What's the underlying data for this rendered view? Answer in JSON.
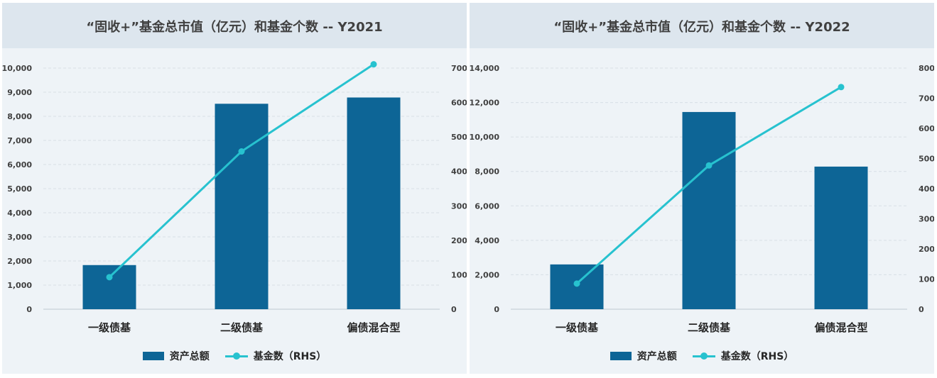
{
  "colors": {
    "bar": "#0d6596",
    "line": "#27c2cf",
    "grid": "#d8dfe6"
  },
  "legend": {
    "bar_label": "资产总额",
    "line_label": "基金数（RHS）"
  },
  "chart_data": [
    {
      "type": "bar",
      "title": "“固收+”基金总市值（亿元）和基金个数 -- Y2021",
      "categories": [
        "一级债基",
        "二级债基",
        "偏债混合型"
      ],
      "series": [
        {
          "name": "资产总额",
          "type": "bar",
          "axis": "left",
          "values": [
            1830,
            8520,
            8780
          ]
        },
        {
          "name": "基金数（RHS）",
          "type": "line",
          "axis": "right",
          "values": [
            93,
            458,
            711
          ]
        }
      ],
      "ylim": [
        0,
        10000
      ],
      "yticks": [
        "0",
        "1,000",
        "2,000",
        "3,000",
        "4,000",
        "5,000",
        "6,000",
        "7,000",
        "8,000",
        "9,000",
        "10,000"
      ],
      "ylim_right": [
        0,
        700
      ],
      "yticks_right": [
        "0",
        "100",
        "200",
        "300",
        "400",
        "500",
        "600",
        "700"
      ],
      "grid": true,
      "legend_position": "bottom"
    },
    {
      "type": "bar",
      "title": "“固收+”基金总市值（亿元）和基金个数 -- Y2022",
      "categories": [
        "一级债基",
        "二级债基",
        "偏债混合型"
      ],
      "series": [
        {
          "name": "资产总额",
          "type": "bar",
          "axis": "left",
          "values": [
            2600,
            11450,
            8280
          ]
        },
        {
          "name": "基金数（RHS）",
          "type": "line",
          "axis": "right",
          "values": [
            85,
            477,
            737
          ]
        }
      ],
      "ylim": [
        0,
        14000
      ],
      "yticks": [
        "0",
        "2,000",
        "4,000",
        "6,000",
        "8,000",
        "10,000",
        "12,000",
        "14,000"
      ],
      "ylim_right": [
        0,
        800
      ],
      "yticks_right": [
        "0",
        "100",
        "200",
        "300",
        "400",
        "500",
        "600",
        "700",
        "800"
      ],
      "grid": true,
      "legend_position": "bottom"
    }
  ]
}
